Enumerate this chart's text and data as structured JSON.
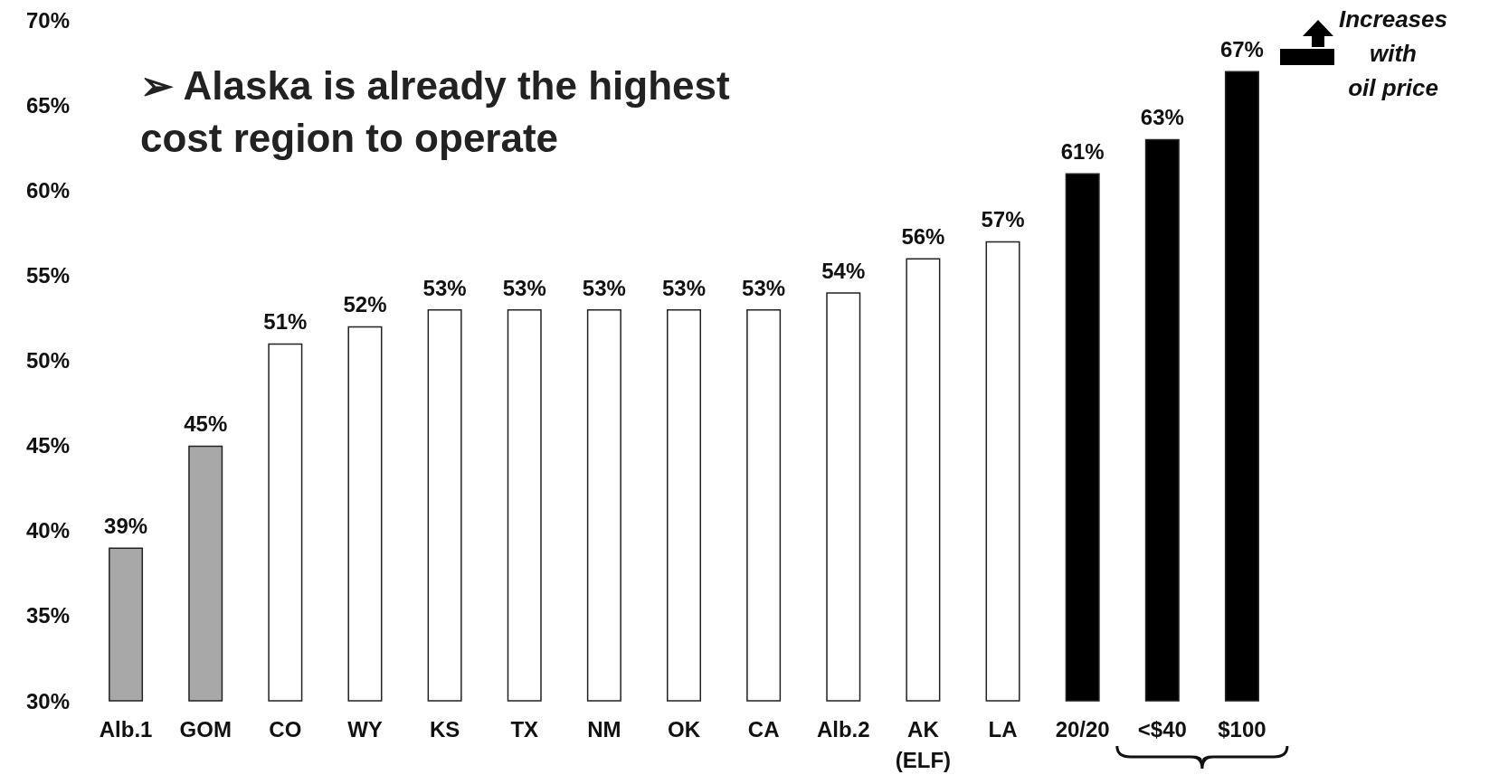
{
  "chart_data": {
    "type": "bar",
    "title": "➢ Alaska is already the highest cost region to operate",
    "categories": [
      "Alb.1",
      "GOM",
      "CO",
      "WY",
      "KS",
      "TX",
      "NM",
      "OK",
      "CA",
      "Alb.2",
      "AK\n(ELF)",
      "LA",
      "20/20",
      "<$40",
      "$100"
    ],
    "values": [
      39,
      45,
      51,
      52,
      53,
      53,
      53,
      53,
      53,
      54,
      56,
      57,
      61,
      63,
      67
    ],
    "value_labels": [
      "39%",
      "45%",
      "51%",
      "52%",
      "53%",
      "53%",
      "53%",
      "53%",
      "53%",
      "54%",
      "56%",
      "57%",
      "61%",
      "63%",
      "67%"
    ],
    "colors": [
      "#a8a8a8",
      "#a8a8a8",
      "#ffffff",
      "#ffffff",
      "#ffffff",
      "#ffffff",
      "#ffffff",
      "#ffffff",
      "#ffffff",
      "#ffffff",
      "#ffffff",
      "#ffffff",
      "#000000",
      "#000000",
      "#000000"
    ],
    "ylim": [
      30,
      70
    ],
    "yticks": [
      {
        "value": 30,
        "label": "30%"
      },
      {
        "value": 35,
        "label": "35%"
      },
      {
        "value": 40,
        "label": "40%"
      },
      {
        "value": 45,
        "label": "45%"
      },
      {
        "value": 50,
        "label": "50%"
      },
      {
        "value": 55,
        "label": "55%"
      },
      {
        "value": 60,
        "label": "60%"
      },
      {
        "value": 65,
        "label": "65%"
      },
      {
        "value": 70,
        "label": "70%"
      }
    ],
    "annotations": [
      "Increases\nwith\noil price"
    ],
    "grid": false
  }
}
